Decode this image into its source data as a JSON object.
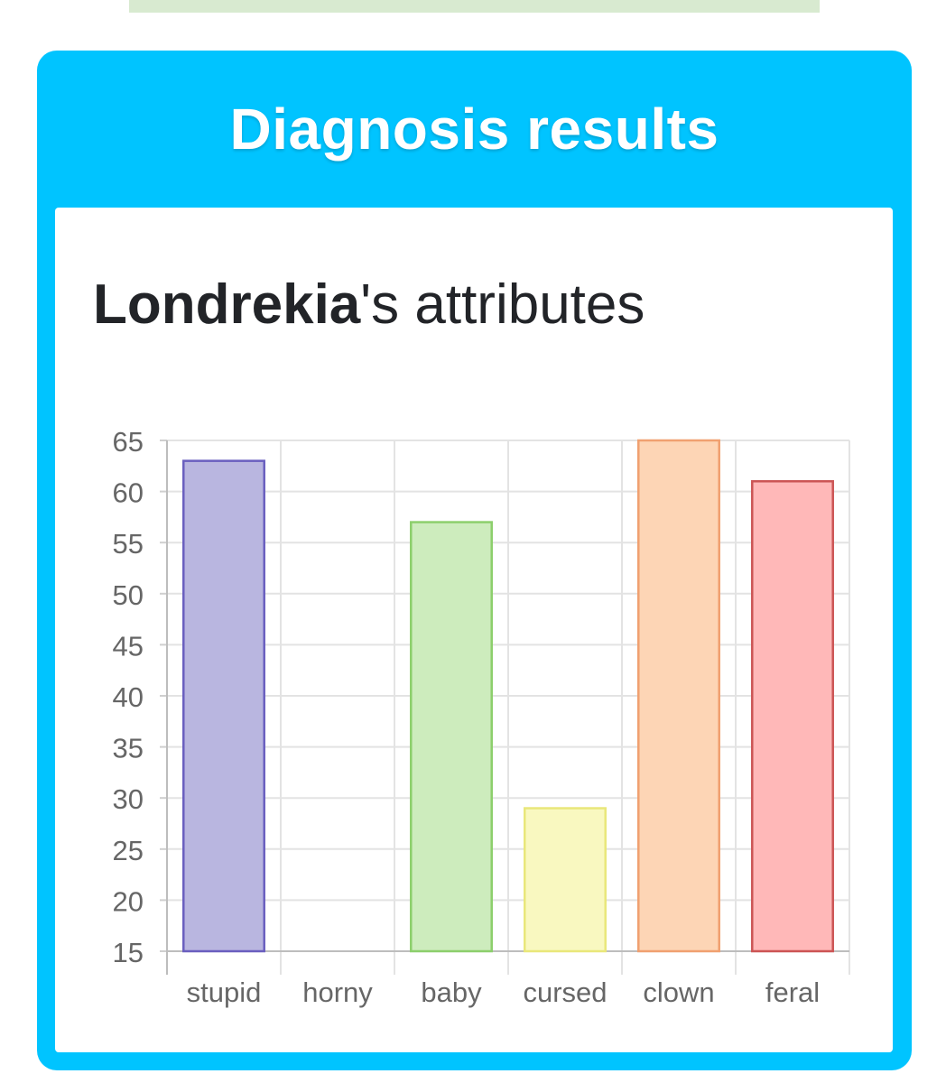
{
  "results": {
    "title": "Diagnosis results"
  },
  "attributes_heading": {
    "name": "Londrekia",
    "suffix": "'s attributes"
  },
  "chart_data": {
    "type": "bar",
    "title": "",
    "xlabel": "",
    "ylabel": "",
    "categories": [
      "stupid",
      "horny",
      "baby",
      "cursed",
      "clown",
      "feral"
    ],
    "values": [
      63,
      15,
      57,
      29,
      65,
      61
    ],
    "ylim": [
      15,
      65
    ],
    "yticks": [
      65,
      60,
      55,
      50,
      45,
      40,
      35,
      30,
      25,
      20,
      15
    ],
    "grid": true,
    "legend": "none",
    "colors": {
      "fills": [
        "#b9b6e0",
        "#d9d9d9",
        "#cdecbd",
        "#f9f8c0",
        "#fdd5b5",
        "#ffb8b8"
      ],
      "strokes": [
        "#6a5fbf",
        "#aaaaaa",
        "#8ccf6c",
        "#e9e77a",
        "#f0a070",
        "#cc5555"
      ]
    }
  }
}
